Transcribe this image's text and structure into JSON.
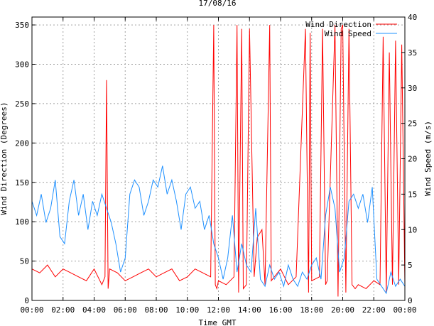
{
  "chart_data": {
    "type": "line",
    "title": "17/08/16",
    "xlabel": "Time GMT",
    "ylabel_left": "Wind Direction (Degrees)",
    "ylabel_right": "Wind Speed (m/s)",
    "xlim_hours": [
      0,
      24
    ],
    "x_tick_hours": [
      0,
      2,
      4,
      6,
      8,
      10,
      12,
      14,
      16,
      18,
      20,
      22,
      24
    ],
    "x_tick_labels": [
      "00:00",
      "02:00",
      "04:00",
      "06:00",
      "08:00",
      "10:00",
      "12:00",
      "14:00",
      "16:00",
      "18:00",
      "20:00",
      "22:00",
      "00:00"
    ],
    "ylim_left": [
      0,
      360
    ],
    "y_ticks_left": [
      0,
      50,
      100,
      150,
      200,
      250,
      300,
      350
    ],
    "ylim_right": [
      0,
      40
    ],
    "y_ticks_right": [
      0,
      5,
      10,
      15,
      20,
      25,
      30,
      35,
      40
    ],
    "grid": true,
    "legend_position": "top-right",
    "series": [
      {
        "name": "Wind Direction",
        "axis": "left",
        "color": "#ff0000",
        "x": [
          0.0,
          0.5,
          1.0,
          1.5,
          2.0,
          2.5,
          3.0,
          3.5,
          4.0,
          4.5,
          4.7,
          4.8,
          4.9,
          5.0,
          5.5,
          6.0,
          6.5,
          7.0,
          7.5,
          8.0,
          8.5,
          9.0,
          9.5,
          10.0,
          10.5,
          11.0,
          11.5,
          11.7,
          11.8,
          11.9,
          12.0,
          12.5,
          13.0,
          13.2,
          13.3,
          13.5,
          13.6,
          13.8,
          14.0,
          14.3,
          14.5,
          14.8,
          15.0,
          15.3,
          15.4,
          15.6,
          16.0,
          16.5,
          17.0,
          17.6,
          17.8,
          17.9,
          18.0,
          18.5,
          18.7,
          18.9,
          19.0,
          19.5,
          19.7,
          19.9,
          20.0,
          20.2,
          20.4,
          20.6,
          20.8,
          21.0,
          21.5,
          22.0,
          22.4,
          22.6,
          22.8,
          23.0,
          23.2,
          23.4,
          23.6,
          23.8,
          24.0
        ],
        "values": [
          40,
          35,
          45,
          30,
          40,
          35,
          30,
          25,
          40,
          20,
          30,
          280,
          15,
          40,
          35,
          25,
          30,
          35,
          40,
          30,
          35,
          40,
          25,
          30,
          40,
          35,
          30,
          350,
          20,
          15,
          25,
          20,
          30,
          350,
          10,
          345,
          15,
          20,
          345,
          30,
          80,
          90,
          20,
          350,
          25,
          30,
          40,
          20,
          30,
          345,
          10,
          340,
          25,
          30,
          345,
          20,
          25,
          350,
          5,
          345,
          350,
          10,
          345,
          20,
          15,
          20,
          15,
          25,
          20,
          335,
          10,
          315,
          20,
          330,
          20,
          325,
          20
        ]
      },
      {
        "name": "Wind Speed",
        "axis": "right",
        "color": "#1e90ff",
        "x": [
          0.0,
          0.3,
          0.6,
          0.9,
          1.2,
          1.5,
          1.8,
          2.1,
          2.4,
          2.7,
          3.0,
          3.3,
          3.6,
          3.9,
          4.2,
          4.5,
          4.8,
          5.1,
          5.4,
          5.7,
          6.0,
          6.3,
          6.6,
          6.9,
          7.2,
          7.5,
          7.8,
          8.1,
          8.4,
          8.7,
          9.0,
          9.3,
          9.6,
          9.9,
          10.2,
          10.5,
          10.8,
          11.1,
          11.4,
          11.7,
          12.0,
          12.3,
          12.6,
          12.9,
          13.2,
          13.5,
          13.8,
          14.1,
          14.4,
          14.7,
          15.0,
          15.3,
          15.6,
          15.9,
          16.2,
          16.5,
          16.8,
          17.1,
          17.4,
          17.7,
          18.0,
          18.3,
          18.6,
          18.9,
          19.2,
          19.5,
          19.8,
          20.1,
          20.4,
          20.7,
          21.0,
          21.3,
          21.6,
          21.9,
          22.2,
          22.5,
          22.8,
          23.1,
          23.4,
          23.7,
          24.0
        ],
        "values": [
          14,
          12,
          15,
          11,
          13,
          17,
          9,
          8,
          14,
          17,
          12,
          15,
          10,
          14,
          12,
          15,
          13,
          11,
          8,
          4,
          6,
          15,
          17,
          16,
          12,
          14,
          17,
          16,
          19,
          15,
          17,
          14,
          10,
          15,
          16,
          13,
          14,
          10,
          12,
          8,
          6,
          3,
          6,
          12,
          4,
          8,
          5,
          4,
          13,
          3,
          2,
          5,
          3,
          4,
          2,
          5,
          3,
          2,
          4,
          3,
          5,
          6,
          3,
          12,
          16,
          13,
          4,
          6,
          14,
          15,
          13,
          15,
          11,
          16,
          3,
          2,
          1,
          4,
          2,
          3,
          2
        ]
      }
    ]
  }
}
